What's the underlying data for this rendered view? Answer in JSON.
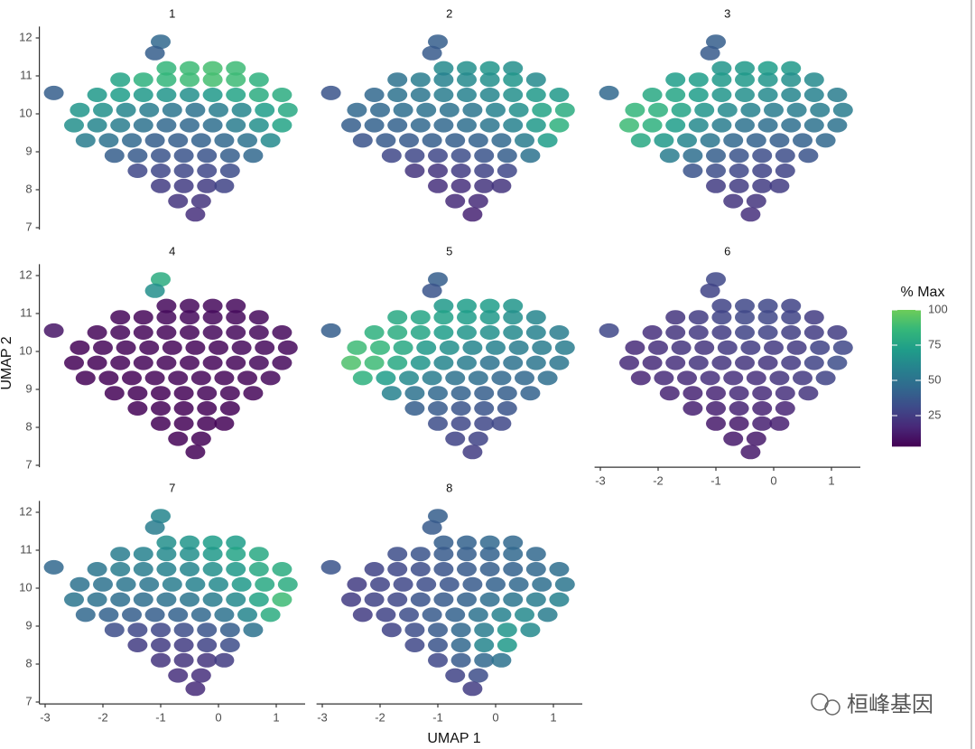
{
  "chart_data": {
    "type": "scatter",
    "xlabel": "UMAP 1",
    "ylabel": "UMAP 2",
    "xlim": [
      -3.1,
      1.5
    ],
    "ylim": [
      6.95,
      12.3
    ],
    "xticks": [
      -3,
      -2,
      -1,
      0,
      1
    ],
    "yticks": [
      7,
      8,
      9,
      10,
      11,
      12
    ],
    "colorbar": {
      "title": "% Max",
      "lim": [
        3,
        100
      ],
      "ticks": [
        25,
        50,
        75,
        100
      ],
      "colors": [
        "#440154",
        "#482878",
        "#3e4a89",
        "#31688e",
        "#26828e",
        "#1f9e89",
        "#35b779",
        "#6dcd59"
      ]
    },
    "x": [
      -0.9,
      -0.5,
      -0.1,
      0.3,
      -1.7,
      -1.3,
      -0.9,
      -0.5,
      -0.1,
      0.3,
      0.7,
      -2.1,
      -1.7,
      -1.3,
      -0.9,
      -0.5,
      -0.1,
      0.3,
      0.7,
      1.1,
      -2.4,
      -2.0,
      -1.6,
      -1.2,
      -0.8,
      -0.4,
      0,
      0.4,
      0.8,
      1.2,
      -2.5,
      -2.1,
      -1.7,
      -1.3,
      -0.9,
      -0.5,
      -0.1,
      0.3,
      0.7,
      1.1,
      -2.3,
      -1.9,
      -1.5,
      -1.1,
      -0.7,
      -0.3,
      0.1,
      0.5,
      0.9,
      -1.8,
      -1.4,
      -1.0,
      -0.6,
      -0.2,
      0.2,
      0.6,
      -1.4,
      -1.0,
      -0.6,
      -0.2,
      0.2,
      -1.0,
      -0.6,
      -0.2,
      0.1,
      -0.7,
      -0.3,
      -0.4,
      -1.0,
      -1.1,
      -2.85
    ],
    "y": [
      11.2,
      11.2,
      11.2,
      11.2,
      10.9,
      10.9,
      10.9,
      10.9,
      10.9,
      10.9,
      10.9,
      10.5,
      10.5,
      10.5,
      10.5,
      10.5,
      10.5,
      10.5,
      10.5,
      10.5,
      10.1,
      10.1,
      10.1,
      10.1,
      10.1,
      10.1,
      10.1,
      10.1,
      10.1,
      10.1,
      9.7,
      9.7,
      9.7,
      9.7,
      9.7,
      9.7,
      9.7,
      9.7,
      9.7,
      9.7,
      9.3,
      9.3,
      9.3,
      9.3,
      9.3,
      9.3,
      9.3,
      9.3,
      9.3,
      8.9,
      8.9,
      8.9,
      8.9,
      8.9,
      8.9,
      8.9,
      8.5,
      8.5,
      8.5,
      8.5,
      8.5,
      8.1,
      8.1,
      8.1,
      8.1,
      7.7,
      7.7,
      7.35,
      11.9,
      11.6,
      10.55
    ],
    "panels": [
      {
        "name": "1",
        "values": [
          85,
          88,
          90,
          88,
          75,
          82,
          85,
          88,
          90,
          88,
          82,
          70,
          72,
          70,
          68,
          65,
          70,
          75,
          80,
          80,
          68,
          66,
          60,
          55,
          52,
          50,
          55,
          60,
          72,
          78,
          65,
          60,
          55,
          50,
          45,
          45,
          48,
          55,
          65,
          75,
          55,
          50,
          45,
          40,
          40,
          42,
          45,
          50,
          62,
          40,
          38,
          35,
          35,
          35,
          40,
          45,
          30,
          30,
          30,
          30,
          32,
          25,
          25,
          25,
          28,
          22,
          22,
          20,
          45,
          40,
          40
        ]
      },
      {
        "name": "2",
        "values": [
          62,
          65,
          68,
          65,
          50,
          55,
          58,
          62,
          65,
          68,
          62,
          45,
          50,
          52,
          55,
          58,
          60,
          65,
          70,
          70,
          45,
          45,
          48,
          50,
          50,
          52,
          58,
          65,
          75,
          80,
          40,
          42,
          42,
          45,
          45,
          48,
          52,
          58,
          70,
          82,
          35,
          38,
          38,
          40,
          40,
          42,
          45,
          55,
          72,
          30,
          30,
          30,
          32,
          35,
          40,
          50,
          22,
          22,
          25,
          28,
          30,
          20,
          20,
          22,
          22,
          18,
          18,
          15,
          40,
          38,
          35
        ]
      },
      {
        "name": "3",
        "values": [
          68,
          70,
          72,
          70,
          72,
          72,
          70,
          70,
          68,
          65,
          62,
          78,
          76,
          72,
          68,
          65,
          62,
          60,
          58,
          55,
          85,
          82,
          75,
          68,
          62,
          58,
          55,
          55,
          55,
          55,
          88,
          82,
          72,
          62,
          55,
          50,
          48,
          48,
          50,
          50,
          78,
          70,
          60,
          52,
          45,
          42,
          40,
          42,
          45,
          55,
          48,
          40,
          35,
          32,
          32,
          35,
          35,
          32,
          30,
          28,
          28,
          25,
          25,
          25,
          25,
          22,
          22,
          20,
          40,
          38,
          45
        ]
      },
      {
        "name": "4",
        "values": [
          6,
          6,
          6,
          6,
          5,
          5,
          6,
          6,
          6,
          6,
          6,
          5,
          5,
          5,
          5,
          5,
          6,
          6,
          6,
          6,
          4,
          5,
          5,
          5,
          5,
          5,
          5,
          6,
          6,
          6,
          4,
          4,
          5,
          5,
          5,
          5,
          5,
          5,
          6,
          6,
          4,
          4,
          4,
          5,
          5,
          5,
          5,
          5,
          6,
          4,
          4,
          4,
          4,
          5,
          5,
          5,
          4,
          4,
          4,
          4,
          4,
          4,
          4,
          4,
          4,
          4,
          4,
          4,
          80,
          65,
          10
        ]
      },
      {
        "name": "5",
        "values": [
          70,
          72,
          72,
          68,
          78,
          76,
          74,
          72,
          70,
          65,
          60,
          82,
          80,
          76,
          72,
          68,
          65,
          62,
          58,
          55,
          88,
          85,
          78,
          70,
          65,
          60,
          58,
          55,
          55,
          55,
          92,
          88,
          78,
          68,
          60,
          55,
          50,
          50,
          52,
          52,
          82,
          72,
          62,
          55,
          50,
          48,
          45,
          45,
          48,
          58,
          50,
          45,
          42,
          40,
          40,
          42,
          40,
          38,
          35,
          35,
          35,
          32,
          30,
          30,
          30,
          28,
          28,
          25,
          40,
          35,
          40
        ]
      },
      {
        "name": "6",
        "values": [
          28,
          30,
          30,
          28,
          22,
          25,
          28,
          30,
          30,
          28,
          25,
          20,
          22,
          24,
          25,
          28,
          28,
          26,
          25,
          25,
          18,
          20,
          22,
          22,
          24,
          25,
          24,
          24,
          28,
          30,
          18,
          18,
          20,
          22,
          22,
          22,
          22,
          24,
          28,
          32,
          16,
          18,
          18,
          20,
          20,
          20,
          22,
          24,
          28,
          15,
          15,
          16,
          18,
          18,
          20,
          22,
          14,
          14,
          15,
          15,
          16,
          12,
          12,
          14,
          14,
          12,
          12,
          12,
          30,
          28,
          30
        ]
      },
      {
        "name": "7",
        "values": [
          65,
          68,
          72,
          72,
          55,
          58,
          62,
          65,
          70,
          75,
          78,
          52,
          55,
          55,
          58,
          60,
          65,
          70,
          78,
          80,
          50,
          50,
          52,
          52,
          55,
          58,
          62,
          70,
          78,
          80,
          52,
          50,
          48,
          48,
          50,
          52,
          55,
          62,
          75,
          88,
          45,
          42,
          40,
          40,
          42,
          45,
          50,
          60,
          80,
          32,
          30,
          30,
          32,
          35,
          40,
          50,
          25,
          25,
          25,
          28,
          32,
          22,
          22,
          22,
          25,
          20,
          20,
          18,
          60,
          55,
          45
        ]
      },
      {
        "name": "8",
        "values": [
          40,
          42,
          45,
          45,
          32,
          35,
          38,
          40,
          42,
          45,
          45,
          28,
          30,
          32,
          35,
          38,
          40,
          42,
          45,
          48,
          25,
          28,
          30,
          32,
          35,
          38,
          42,
          45,
          48,
          52,
          25,
          28,
          30,
          35,
          38,
          42,
          48,
          52,
          55,
          58,
          25,
          28,
          32,
          38,
          42,
          50,
          58,
          62,
          55,
          28,
          32,
          38,
          45,
          55,
          68,
          62,
          30,
          35,
          45,
          60,
          70,
          30,
          38,
          45,
          50,
          28,
          32,
          25,
          40,
          38,
          35
        ]
      }
    ]
  },
  "watermark": "桓峰基因"
}
